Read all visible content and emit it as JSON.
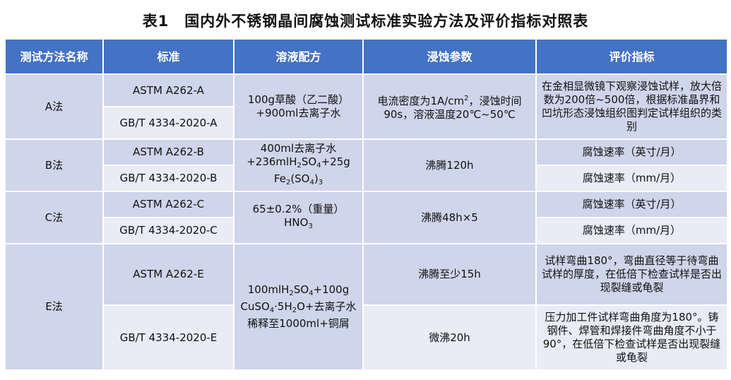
{
  "title": "表1　国内外不锈钢晶间腐蚀测试标准实验方法及评价指标对照表",
  "headers": [
    "测试方法名称",
    "标准",
    "溶液配方",
    "浸蚀参数",
    "评价指标"
  ],
  "rows": {
    "a": {
      "method": "A法",
      "std1": "ASTM A262-A",
      "std2": "GB/T 4334-2020-A",
      "solution": "100g草酸（乙二酸）+900ml去离子水",
      "params_pre": "电流密度为1A/cm",
      "params_sup": "2",
      "params_post": "，浸蚀时间90s，溶液温度20℃~50℃",
      "eval": "在金相显微镜下观察浸蚀试样，放大倍数为200倍~500倍，根据标准晶界和凹坑形态浸蚀组织图判定试样组织的类别"
    },
    "b": {
      "method": "B法",
      "std1": "ASTM A262-B",
      "std2": "GB/T 4334-2020-B",
      "sol_p1": "400ml去离子水",
      "sol_p2": "+236mlH",
      "sol_s1": "2",
      "sol_p3": "SO",
      "sol_s2": "4",
      "sol_p4": "+25g",
      "sol_p5": "Fe",
      "sol_s3": "2",
      "sol_p6": "(SO",
      "sol_s4": "4",
      "sol_p7": ")",
      "sol_s5": "3",
      "params": "沸腾120h",
      "eval1": "腐蚀速率（英寸/月）",
      "eval2": "腐蚀速率（mm/月）"
    },
    "c": {
      "method": "C法",
      "std1": "ASTM A262-C",
      "std2": "GB/T 4334-2020-C",
      "sol_p1": "65±0.2%（重量）",
      "sol_p2": "HNO",
      "sol_s1": "3",
      "params": "沸腾48h×5",
      "eval1": "腐蚀速率（英寸/月）",
      "eval2": "腐蚀速率（mm/月）"
    },
    "e": {
      "method": "E法",
      "std1": "ASTM A262-E",
      "std2": "GB/T 4334-2020-E",
      "sol_p1": "100mlH",
      "sol_s1": "2",
      "sol_p2": "SO",
      "sol_s2": "4",
      "sol_p3": "+100g",
      "sol_p4": "CuSO",
      "sol_s3": "4",
      "sol_p5": "·5H",
      "sol_s4": "2",
      "sol_p6": "O+去离子水稀释至1000ml+铜屑",
      "params1": "沸腾至少15h",
      "params2": "微沸20h",
      "eval1": "试样弯曲180°，弯曲直径等于待弯曲试样的厚度，在低倍下检查试样是否出现裂缝或龟裂",
      "eval2": "压力加工件试样弯曲角度为180°。铸钢件、焊管和焊接件弯曲角度不小于90°，在低倍下检查试样是否出现裂缝或龟裂"
    }
  },
  "colors": {
    "header": "#4472c4",
    "row_dark": "#cfd5ea",
    "row_light": "#e9ebf5"
  }
}
